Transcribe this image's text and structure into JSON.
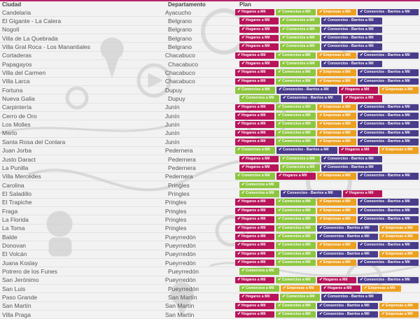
{
  "header": {
    "city": "Ciudad",
    "department": "Departamento",
    "plan": "Plan"
  },
  "colors": {
    "hogares": "#b8145a",
    "comercios": "#8dc63f",
    "empresas": "#eda020",
    "consorcios": "#4a3c8c",
    "accent": "#b3246b"
  },
  "plan_labels": {
    "H": "Hogares a Mil",
    "C": "Comercios a Mil",
    "E": "Empresas a Mil",
    "K": "Consorcios - Barrios a Mil"
  },
  "rows": [
    {
      "city": "Candelaria",
      "department": "Ayacucho",
      "plans": [
        "H",
        "C",
        "E",
        "K"
      ]
    },
    {
      "city": "El Gigante - La Calera",
      "department": "Belgrano",
      "plans": [
        "H",
        "C",
        "K"
      ]
    },
    {
      "city": "Nogolí",
      "department": "Belgrano",
      "plans": [
        "H",
        "C",
        "K"
      ]
    },
    {
      "city": "Villa de La Quebrada",
      "department": "Belgrano",
      "plans": [
        "H",
        "C",
        "K"
      ]
    },
    {
      "city": "Villa Gral Roca - Los Manantiales",
      "department": "Belgrano",
      "plans": [
        "H",
        "C",
        "K"
      ]
    },
    {
      "city": "Cortaderas",
      "department": "Chacabuco",
      "plans": [
        "H",
        "C",
        "E",
        "K"
      ]
    },
    {
      "city": "Papagayos",
      "department": "Chacabuco",
      "plans": [
        "H",
        "C",
        "K"
      ]
    },
    {
      "city": "Villa del Carmen",
      "department": "Chacabuco",
      "plans": [
        "H",
        "C",
        "E",
        "K"
      ]
    },
    {
      "city": "Villa Larca",
      "department": "Chacabuco",
      "plans": [
        "H",
        "C",
        "E",
        "K"
      ]
    },
    {
      "city": "Fortuna",
      "department": "Dupuy",
      "plans": [
        "C",
        "K",
        "H",
        "E"
      ]
    },
    {
      "city": "Nueva Galia",
      "department": "Dupuy",
      "plans": [
        "C",
        "K",
        "H"
      ]
    },
    {
      "city": "Carpintería",
      "department": "Junín",
      "plans": [
        "H",
        "C",
        "E",
        "K"
      ]
    },
    {
      "city": "Cerro de Oro",
      "department": "Junín",
      "plans": [
        "H",
        "C",
        "E",
        "K"
      ]
    },
    {
      "city": "Los Molles",
      "department": "Junín",
      "plans": [
        "H",
        "C",
        "E",
        "K"
      ]
    },
    {
      "city": "Merlo",
      "department": "Junín",
      "plans": [
        "H",
        "C",
        "E",
        "K"
      ]
    },
    {
      "city": "Santa Rosa del Conlara",
      "department": "Junín",
      "plans": [
        "H",
        "C",
        "E",
        "K"
      ]
    },
    {
      "city": "Juan Jorba",
      "department": "Pedernera",
      "plans": [
        "C",
        "K",
        "H",
        "E"
      ]
    },
    {
      "city": "Justo Daract",
      "department": "Pedernera",
      "plans": [
        "H",
        "C",
        "K"
      ]
    },
    {
      "city": "La Punilla",
      "department": "Pedernera",
      "plans": [
        "H",
        "C",
        "K"
      ]
    },
    {
      "city": "Villa Mercedes",
      "department": "Pedernera",
      "plans": [
        "C",
        "H",
        "E",
        "K"
      ]
    },
    {
      "city": "Carolina",
      "department": "Pringles",
      "plans": [
        "C"
      ]
    },
    {
      "city": "El Saladillo",
      "department": "Pringles",
      "plans": [
        "C",
        "K",
        "H"
      ]
    },
    {
      "city": "El Trapiche",
      "department": "Pringles",
      "plans": [
        "H",
        "C",
        "E",
        "K"
      ]
    },
    {
      "city": "Fraga",
      "department": "Pringles",
      "plans": [
        "H",
        "C",
        "E",
        "K"
      ]
    },
    {
      "city": "La Florida",
      "department": "Pringles",
      "plans": [
        "H",
        "C",
        "E",
        "K"
      ]
    },
    {
      "city": "La Toma",
      "department": "Pringles",
      "plans": [
        "H",
        "C",
        "K",
        "E"
      ]
    },
    {
      "city": "Balde",
      "department": "Pueyrredón",
      "plans": [
        "H",
        "C",
        "K",
        "E"
      ]
    },
    {
      "city": "Donovan",
      "department": "Pueyrredón",
      "plans": [
        "H",
        "C",
        "E",
        "K"
      ]
    },
    {
      "city": "El Volcán",
      "department": "Pueyrredón",
      "plans": [
        "H",
        "C",
        "K",
        "E"
      ]
    },
    {
      "city": "Juana Koslay",
      "department": "Pueyrredón",
      "plans": [
        "H",
        "C",
        "E",
        "K"
      ]
    },
    {
      "city": "Potrero de los Funes",
      "department": "Pueyrredón",
      "plans": [
        "C"
      ]
    },
    {
      "city": "San Jerónimo",
      "department": "Pueyrredón",
      "plans": [
        "H",
        "C",
        "H",
        "K"
      ]
    },
    {
      "city": "San Luis",
      "department": "Pueyrredón",
      "plans": [
        "C",
        "E",
        "H",
        "E"
      ]
    },
    {
      "city": "Paso Grande",
      "department": "San Martín",
      "plans": [
        "H",
        "C",
        "K"
      ]
    },
    {
      "city": "San Martín",
      "department": "San Martín",
      "plans": [
        "H",
        "C",
        "K",
        "E"
      ]
    },
    {
      "city": "Villa Praga",
      "department": "San Martín",
      "plans": [
        "H",
        "C",
        "K",
        "E"
      ]
    }
  ]
}
